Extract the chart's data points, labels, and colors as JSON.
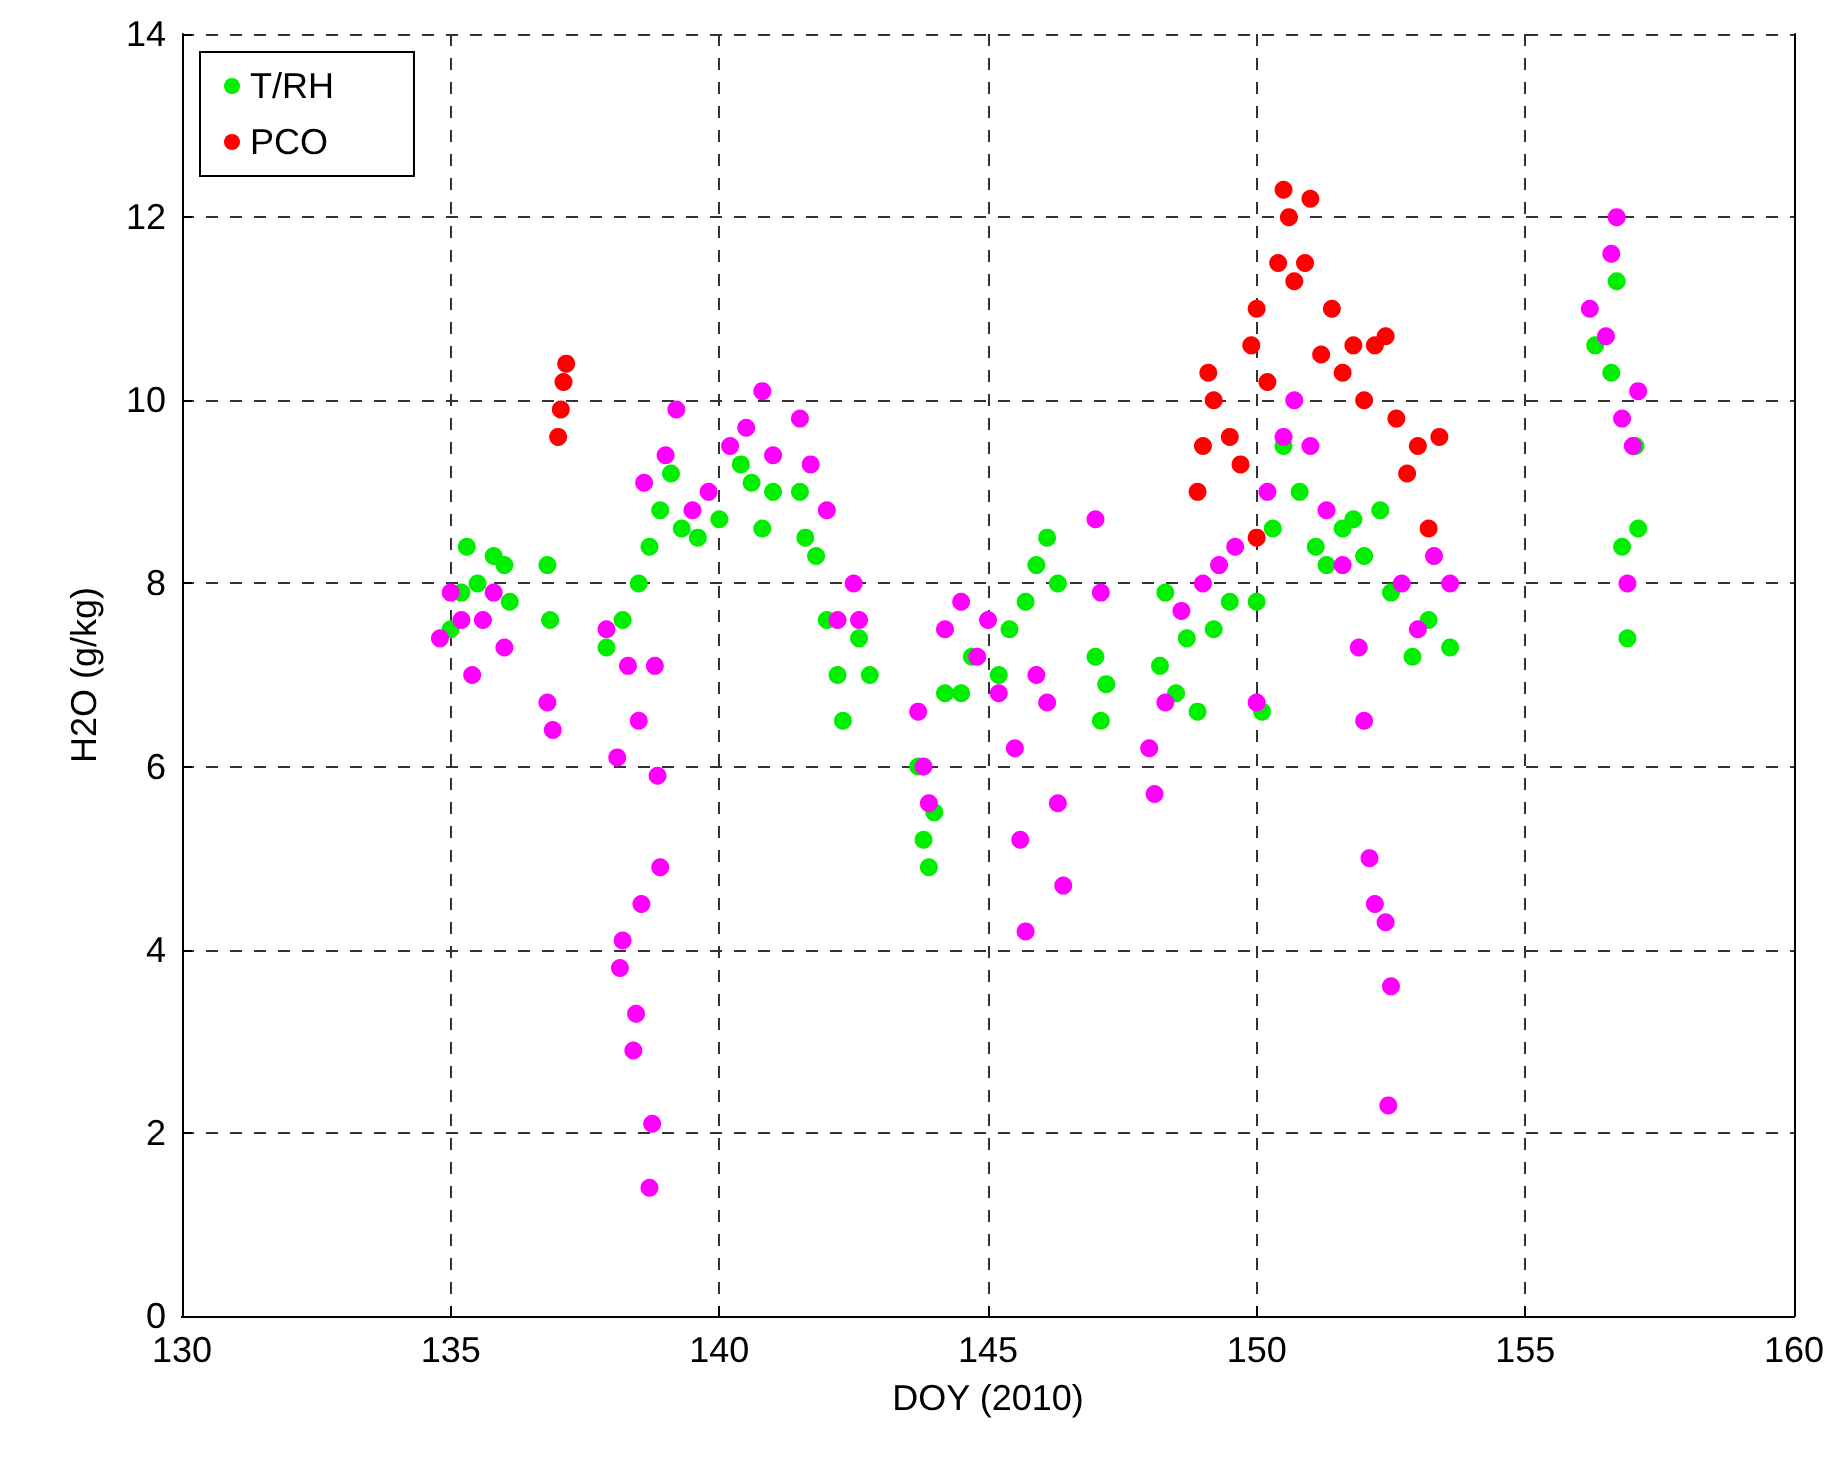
{
  "chart_data": {
    "type": "scatter",
    "xlabel": "DOY (2010)",
    "ylabel": "H2O (g/kg)",
    "xlim": [
      130,
      160
    ],
    "xticks": [
      130,
      135,
      140,
      145,
      150,
      155,
      160
    ],
    "ylim": [
      0,
      14
    ],
    "yticks": [
      0,
      2,
      4,
      6,
      8,
      10,
      12,
      14
    ],
    "grid": true,
    "legend": "top left",
    "marker": "circle",
    "series": [
      {
        "name": "T/RH",
        "color": "#00ee00",
        "x": [
          135,
          135.2,
          135.3,
          135.5,
          135.8,
          136,
          136.1,
          136.8,
          136.85,
          137.9,
          138.2,
          138.5,
          138.7,
          138.9,
          139.1,
          139.3,
          139.6,
          140,
          140.4,
          140.6,
          140.8,
          141,
          141.5,
          141.6,
          141.8,
          142,
          142.2,
          142.3,
          142.6,
          142.8,
          143.7,
          143.8,
          143.9,
          144,
          144.2,
          144.5,
          144.7,
          145.2,
          145.4,
          145.7,
          145.9,
          146.1,
          146.3,
          147,
          147.1,
          147.2,
          148.2,
          148.3,
          148.5,
          148.7,
          148.9,
          149.2,
          149.5,
          150,
          150.1,
          150.3,
          150.5,
          150.8,
          151.1,
          151.3,
          151.6,
          151.8,
          152,
          152.3,
          152.5,
          152.9,
          153.2,
          153.6,
          156.3,
          156.6,
          156.7,
          156.8,
          156.9,
          157.05,
          157.1
        ],
        "values": [
          7.5,
          7.9,
          8.4,
          8,
          8.3,
          8.2,
          7.8,
          8.2,
          7.6,
          7.3,
          7.6,
          8,
          8.4,
          8.8,
          9.2,
          8.6,
          8.5,
          8.7,
          9.3,
          9.1,
          8.6,
          9,
          9,
          8.5,
          8.3,
          7.6,
          7,
          6.5,
          7.4,
          7,
          6,
          5.2,
          4.9,
          5.5,
          6.8,
          6.8,
          7.2,
          7,
          7.5,
          7.8,
          8.2,
          8.5,
          8,
          7.2,
          6.5,
          6.9,
          7.1,
          7.9,
          6.8,
          7.4,
          6.6,
          7.5,
          7.8,
          7.8,
          6.6,
          8.6,
          9.5,
          9,
          8.4,
          8.2,
          8.6,
          8.7,
          8.3,
          8.8,
          7.9,
          7.2,
          7.6,
          7.3,
          10.6,
          10.3,
          11.3,
          8.4,
          7.4,
          9.5,
          8.6
        ]
      },
      {
        "name": "PCO",
        "color": "#ff0000",
        "x": [
          137,
          137.05,
          137.1,
          137.15,
          148.9,
          149,
          149.1,
          149.2,
          149.5,
          149.7,
          149.9,
          150,
          150,
          150.2,
          150.4,
          150.5,
          150.6,
          150.7,
          150.9,
          151,
          151.2,
          151.4,
          151.6,
          151.8,
          152,
          152.2,
          152.4,
          152.6,
          152.8,
          153,
          153.2,
          153.4
        ],
        "values": [
          9.6,
          9.9,
          10.2,
          10.4,
          9,
          9.5,
          10.3,
          10,
          9.6,
          9.3,
          10.6,
          11,
          8.5,
          10.2,
          11.5,
          12.3,
          12,
          11.3,
          11.5,
          12.2,
          10.5,
          11,
          10.3,
          10.6,
          10,
          10.6,
          10.7,
          9.8,
          9.2,
          9.5,
          8.6,
          9.6
        ]
      },
      {
        "color": "#ff00ff",
        "x": [
          134.8,
          135,
          135.2,
          135.4,
          135.6,
          135.8,
          136,
          136.8,
          136.9,
          137.9,
          138.1,
          138.15,
          138.2,
          138.3,
          138.4,
          138.45,
          138.5,
          138.55,
          138.6,
          138.7,
          138.75,
          138.8,
          138.85,
          138.9,
          139,
          139.2,
          139.5,
          139.8,
          140.2,
          140.5,
          140.8,
          141,
          141.5,
          141.7,
          142,
          142.2,
          142.5,
          142.6,
          143.7,
          143.8,
          143.9,
          144.2,
          144.5,
          144.8,
          145,
          145.2,
          145.5,
          145.6,
          145.7,
          145.9,
          146.1,
          146.3,
          146.4,
          147,
          147.1,
          148,
          148.1,
          148.3,
          148.6,
          149,
          149.3,
          149.6,
          150,
          150.2,
          150.5,
          150.7,
          151,
          151.3,
          151.6,
          151.9,
          152,
          152.1,
          152.2,
          152.4,
          152.45,
          152.5,
          152.7,
          153,
          153.3,
          153.6,
          156.2,
          156.5,
          156.6,
          156.7,
          156.8,
          156.9,
          157,
          157.1
        ],
        "values": [
          7.4,
          7.9,
          7.6,
          7,
          7.6,
          7.9,
          7.3,
          6.7,
          6.4,
          7.5,
          6.1,
          3.8,
          4.1,
          7.1,
          2.9,
          3.3,
          6.5,
          4.5,
          9.1,
          1.4,
          2.1,
          7.1,
          5.9,
          4.9,
          9.4,
          9.9,
          8.8,
          9,
          9.5,
          9.7,
          10.1,
          9.4,
          9.8,
          9.3,
          8.8,
          7.6,
          8,
          7.6,
          6.6,
          6,
          5.6,
          7.5,
          7.8,
          7.2,
          7.6,
          6.8,
          6.2,
          5.2,
          4.2,
          7,
          6.7,
          5.6,
          4.7,
          8.7,
          7.9,
          6.2,
          5.7,
          6.7,
          7.7,
          8,
          8.2,
          8.4,
          6.7,
          9,
          9.6,
          10,
          9.5,
          8.8,
          8.2,
          7.3,
          6.5,
          5,
          4.5,
          4.3,
          2.3,
          3.6,
          8,
          7.5,
          8.3,
          8,
          11,
          10.7,
          11.6,
          12,
          9.8,
          8,
          9.5,
          10.1
        ]
      }
    ]
  }
}
